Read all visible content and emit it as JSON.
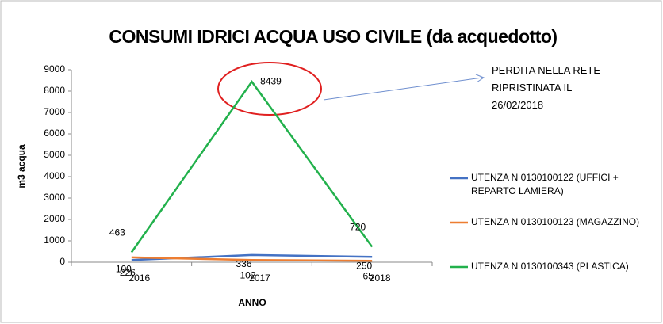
{
  "chart_data": {
    "type": "line",
    "title": "CONSUMI  IDRICI ACQUA USO CIVILE (da acquedotto)",
    "y_label": "m3 acqua",
    "x_label": "ANNO",
    "annotation": [
      "PERDITA NELLA RETE",
      "RIPRISTINATA IL",
      "26/02/2018"
    ],
    "categories": [
      "2016",
      "2017",
      "2018"
    ],
    "series": [
      {
        "name": "UTENZA N 0130100122 (UFFICI + REPARTO LAMIERA)",
        "color": "#4472c4",
        "values": [
          100,
          336,
          250
        ]
      },
      {
        "name": "UTENZA N 0130100123 (MAGAZZINO)",
        "color": "#ed7d31",
        "values": [
          226,
          102,
          65
        ]
      },
      {
        "name": "UTENZA N 0130100343 (PLASTICA)",
        "color": "#22b14c",
        "values": [
          463,
          8439,
          720
        ]
      }
    ],
    "ylim": [
      0,
      9000
    ],
    "yticks": [
      0,
      1000,
      2000,
      3000,
      4000,
      5000,
      6000,
      7000,
      8000,
      9000
    ],
    "legend": "right",
    "grid": false
  }
}
